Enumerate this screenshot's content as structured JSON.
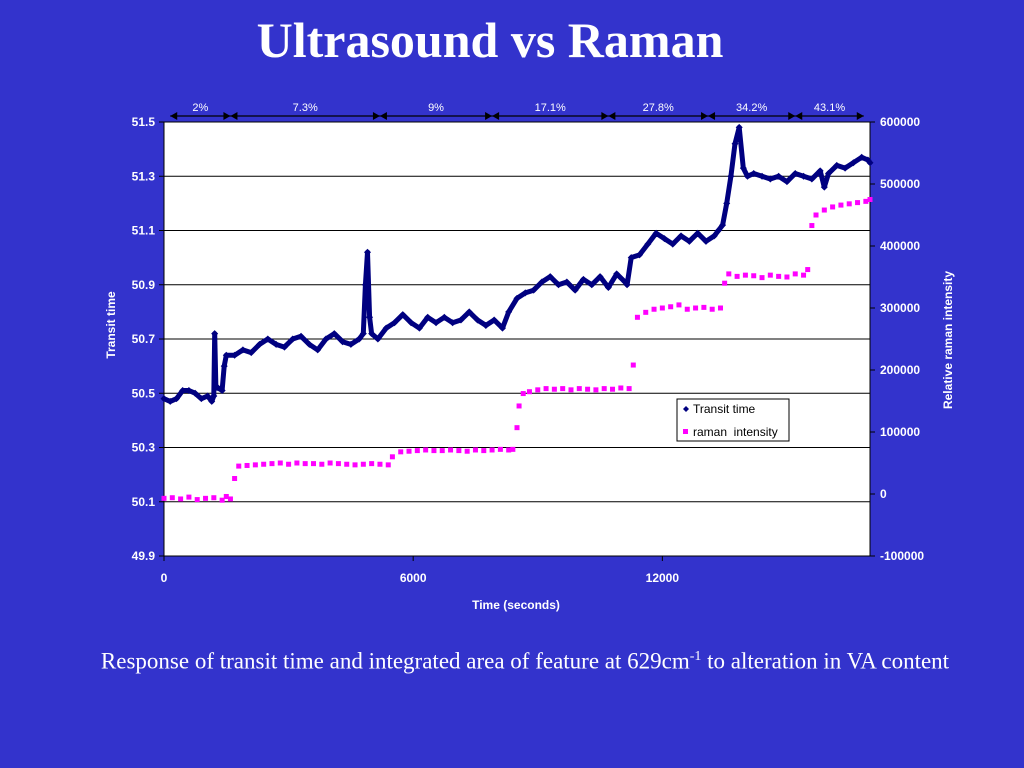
{
  "slide": {
    "title": "Ultrasound vs Raman",
    "caption_before_sup": "Response of transit time and integrated area of feature  at 629cm",
    "caption_sup": "-1",
    "caption_after_sup": "  to alteration in VA content"
  },
  "colors": {
    "background": "#3333cc",
    "plot_area": "#ffffff",
    "transit_series": "#000080",
    "raman_series": "#ff00ff",
    "gridline": "#000000"
  },
  "chart_data": {
    "type": "scatter",
    "xlabel": "Time (seconds)",
    "ylabel_left": "Transit time",
    "ylabel_right": "Relative raman intensity",
    "xlim": [
      0,
      17000
    ],
    "x_ticks": [
      0,
      6000,
      12000
    ],
    "ylim_left": [
      49.9,
      51.5
    ],
    "y_ticks_left": [
      "51.5",
      "51.3",
      "51.1",
      "50.9",
      "50.7",
      "50.5",
      "50.3",
      "50.1",
      "49.9"
    ],
    "ylim_right": [
      -100000,
      600000
    ],
    "y_ticks_right": [
      "600000",
      "500000",
      "400000",
      "300000",
      "200000",
      "100000",
      "0",
      "-100000"
    ],
    "grid": true,
    "legend_position": "lower-right",
    "segments": [
      {
        "label": "2%",
        "x_start": 150,
        "x_end": 1600
      },
      {
        "label": "7.3%",
        "x_start": 1600,
        "x_end": 5200
      },
      {
        "label": "9%",
        "x_start": 5200,
        "x_end": 7900
      },
      {
        "label": "17.1%",
        "x_start": 7900,
        "x_end": 10700
      },
      {
        "label": "27.8%",
        "x_start": 10700,
        "x_end": 13100
      },
      {
        "label": "34.2%",
        "x_start": 13100,
        "x_end": 15200
      },
      {
        "label": "43.1%",
        "x_start": 15200,
        "x_end": 16850
      }
    ],
    "series": [
      {
        "name": "Transit time",
        "axis": "left",
        "marker": "diamond",
        "points": [
          [
            0,
            50.48
          ],
          [
            150,
            50.47
          ],
          [
            300,
            50.48
          ],
          [
            450,
            50.51
          ],
          [
            600,
            50.51
          ],
          [
            750,
            50.5
          ],
          [
            900,
            50.48
          ],
          [
            1050,
            50.49
          ],
          [
            1150,
            50.47
          ],
          [
            1200,
            50.49
          ],
          [
            1220,
            50.72
          ],
          [
            1250,
            50.52
          ],
          [
            1300,
            50.52
          ],
          [
            1400,
            50.51
          ],
          [
            1450,
            50.6
          ],
          [
            1500,
            50.64
          ],
          [
            1700,
            50.64
          ],
          [
            1900,
            50.66
          ],
          [
            2100,
            50.65
          ],
          [
            2300,
            50.68
          ],
          [
            2500,
            50.7
          ],
          [
            2700,
            50.68
          ],
          [
            2900,
            50.67
          ],
          [
            3100,
            50.7
          ],
          [
            3300,
            50.71
          ],
          [
            3500,
            50.68
          ],
          [
            3700,
            50.66
          ],
          [
            3900,
            50.7
          ],
          [
            4100,
            50.72
          ],
          [
            4300,
            50.69
          ],
          [
            4500,
            50.68
          ],
          [
            4700,
            50.7
          ],
          [
            4800,
            50.72
          ],
          [
            4850,
            50.9
          ],
          [
            4900,
            51.02
          ],
          [
            4950,
            50.78
          ],
          [
            5000,
            50.72
          ],
          [
            5150,
            50.7
          ],
          [
            5350,
            50.74
          ],
          [
            5550,
            50.76
          ],
          [
            5750,
            50.79
          ],
          [
            5950,
            50.76
          ],
          [
            6150,
            50.74
          ],
          [
            6350,
            50.78
          ],
          [
            6550,
            50.76
          ],
          [
            6750,
            50.78
          ],
          [
            6950,
            50.76
          ],
          [
            7150,
            50.77
          ],
          [
            7350,
            50.8
          ],
          [
            7550,
            50.77
          ],
          [
            7750,
            50.75
          ],
          [
            7950,
            50.77
          ],
          [
            8150,
            50.74
          ],
          [
            8300,
            50.8
          ],
          [
            8500,
            50.85
          ],
          [
            8700,
            50.87
          ],
          [
            8900,
            50.88
          ],
          [
            9100,
            50.91
          ],
          [
            9300,
            50.93
          ],
          [
            9500,
            50.9
          ],
          [
            9700,
            50.91
          ],
          [
            9900,
            50.88
          ],
          [
            10100,
            50.92
          ],
          [
            10300,
            50.9
          ],
          [
            10500,
            50.93
          ],
          [
            10700,
            50.89
          ],
          [
            10900,
            50.94
          ],
          [
            11100,
            50.91
          ],
          [
            11150,
            50.9
          ],
          [
            11250,
            51.0
          ],
          [
            11450,
            51.01
          ],
          [
            11650,
            51.05
          ],
          [
            11850,
            51.09
          ],
          [
            12050,
            51.07
          ],
          [
            12250,
            51.05
          ],
          [
            12450,
            51.08
          ],
          [
            12650,
            51.06
          ],
          [
            12850,
            51.09
          ],
          [
            13050,
            51.06
          ],
          [
            13250,
            51.08
          ],
          [
            13350,
            51.1
          ],
          [
            13450,
            51.12
          ],
          [
            13550,
            51.2
          ],
          [
            13650,
            51.3
          ],
          [
            13750,
            51.42
          ],
          [
            13850,
            51.48
          ],
          [
            13950,
            51.33
          ],
          [
            14050,
            51.3
          ],
          [
            14200,
            51.31
          ],
          [
            14400,
            51.3
          ],
          [
            14600,
            51.29
          ],
          [
            14800,
            51.3
          ],
          [
            15000,
            51.28
          ],
          [
            15200,
            51.31
          ],
          [
            15400,
            51.3
          ],
          [
            15600,
            51.29
          ],
          [
            15800,
            51.32
          ],
          [
            15900,
            51.26
          ],
          [
            16000,
            51.31
          ],
          [
            16200,
            51.34
          ],
          [
            16400,
            51.33
          ],
          [
            16600,
            51.35
          ],
          [
            16800,
            51.37
          ],
          [
            16950,
            51.36
          ],
          [
            17000,
            51.35
          ]
        ]
      },
      {
        "name": "raman  intensity",
        "axis": "right",
        "marker": "square",
        "points": [
          [
            0,
            -7000
          ],
          [
            200,
            -6000
          ],
          [
            400,
            -8000
          ],
          [
            600,
            -5000
          ],
          [
            800,
            -9000
          ],
          [
            1000,
            -7000
          ],
          [
            1200,
            -6000
          ],
          [
            1400,
            -10000
          ],
          [
            1500,
            -4000
          ],
          [
            1600,
            -8000
          ],
          [
            1700,
            25000
          ],
          [
            1800,
            45000
          ],
          [
            2000,
            46000
          ],
          [
            2200,
            47000
          ],
          [
            2400,
            48000
          ],
          [
            2600,
            49000
          ],
          [
            2800,
            50000
          ],
          [
            3000,
            48000
          ],
          [
            3200,
            50000
          ],
          [
            3400,
            49000
          ],
          [
            3600,
            49000
          ],
          [
            3800,
            48000
          ],
          [
            4000,
            50000
          ],
          [
            4200,
            49000
          ],
          [
            4400,
            48000
          ],
          [
            4600,
            47000
          ],
          [
            4800,
            48000
          ],
          [
            5000,
            49000
          ],
          [
            5200,
            48000
          ],
          [
            5400,
            47000
          ],
          [
            5500,
            60000
          ],
          [
            5700,
            68000
          ],
          [
            5900,
            69000
          ],
          [
            6100,
            70000
          ],
          [
            6300,
            71000
          ],
          [
            6500,
            70000
          ],
          [
            6700,
            70000
          ],
          [
            6900,
            71000
          ],
          [
            7100,
            70000
          ],
          [
            7300,
            69000
          ],
          [
            7500,
            71000
          ],
          [
            7700,
            70000
          ],
          [
            7900,
            71000
          ],
          [
            8100,
            72000
          ],
          [
            8300,
            71000
          ],
          [
            8400,
            72000
          ],
          [
            8500,
            107000
          ],
          [
            8550,
            142000
          ],
          [
            8650,
            162000
          ],
          [
            8800,
            165000
          ],
          [
            9000,
            168000
          ],
          [
            9200,
            170000
          ],
          [
            9400,
            169000
          ],
          [
            9600,
            170000
          ],
          [
            9800,
            168000
          ],
          [
            10000,
            170000
          ],
          [
            10200,
            169000
          ],
          [
            10400,
            168000
          ],
          [
            10600,
            170000
          ],
          [
            10800,
            169000
          ],
          [
            11000,
            171000
          ],
          [
            11200,
            170000
          ],
          [
            11300,
            208000
          ],
          [
            11400,
            285000
          ],
          [
            11600,
            293000
          ],
          [
            11800,
            298000
          ],
          [
            12000,
            300000
          ],
          [
            12200,
            302000
          ],
          [
            12400,
            305000
          ],
          [
            12600,
            298000
          ],
          [
            12800,
            300000
          ],
          [
            13000,
            301000
          ],
          [
            13200,
            298000
          ],
          [
            13400,
            300000
          ],
          [
            13500,
            340000
          ],
          [
            13600,
            355000
          ],
          [
            13800,
            351000
          ],
          [
            14000,
            353000
          ],
          [
            14200,
            352000
          ],
          [
            14400,
            349000
          ],
          [
            14600,
            353000
          ],
          [
            14800,
            351000
          ],
          [
            15000,
            350000
          ],
          [
            15200,
            355000
          ],
          [
            15400,
            353000
          ],
          [
            15500,
            362000
          ],
          [
            15600,
            433000
          ],
          [
            15700,
            450000
          ],
          [
            15900,
            458000
          ],
          [
            16100,
            463000
          ],
          [
            16300,
            466000
          ],
          [
            16500,
            468000
          ],
          [
            16700,
            470000
          ],
          [
            16900,
            472000
          ],
          [
            17000,
            475000
          ]
        ]
      }
    ]
  }
}
